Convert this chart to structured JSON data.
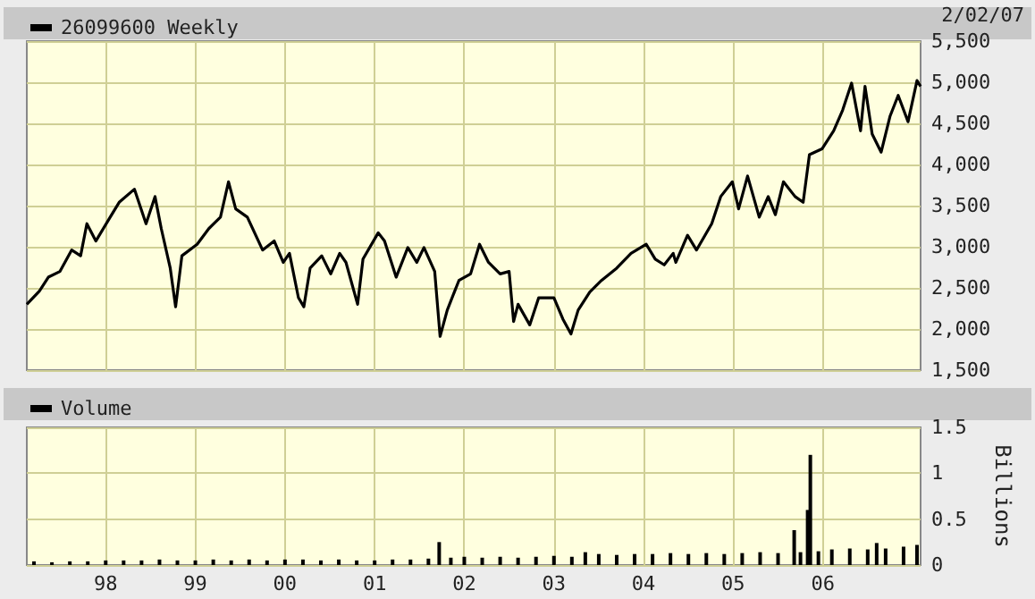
{
  "chart_data": [
    {
      "type": "line",
      "legend": "top left",
      "grid": true,
      "tick_labels": "y",
      "marker": "none",
      "line_style": "solid",
      "annotations": [
        "2/02/07"
      ],
      "xlim": [
        1997.12,
        2007.09
      ],
      "xticks": [
        1998,
        1999,
        2000,
        2001,
        2002,
        2003,
        2004,
        2005,
        2006
      ],
      "ylim": [
        1500,
        5500
      ],
      "yticks": [
        {
          "value": 1500,
          "label": "1,500"
        },
        {
          "value": 2000,
          "label": "2,000"
        },
        {
          "value": 2500,
          "label": "2,500"
        },
        {
          "value": 3000,
          "label": "3,000"
        },
        {
          "value": 3500,
          "label": "3,500"
        },
        {
          "value": 4000,
          "label": "4,000"
        },
        {
          "value": 4500,
          "label": "4,500"
        },
        {
          "value": 5000,
          "label": "5,000"
        },
        {
          "value": 5500,
          "label": "5,500"
        }
      ],
      "series": [
        {
          "name": "26099600 Weekly",
          "color": "#000000",
          "x": [
            1997.12,
            1997.26,
            1997.36,
            1997.49,
            1997.62,
            1997.72,
            1997.79,
            1997.89,
            1998.05,
            1998.15,
            1998.32,
            1998.45,
            1998.55,
            1998.62,
            1998.72,
            1998.78,
            1998.85,
            1999.02,
            1999.15,
            1999.28,
            1999.37,
            1999.45,
            1999.58,
            1999.75,
            1999.88,
            1999.98,
            2000.05,
            2000.15,
            2000.21,
            2000.28,
            2000.41,
            2000.51,
            2000.61,
            2000.68,
            2000.81,
            2000.87,
            2001.04,
            2001.11,
            2001.24,
            2001.37,
            2001.47,
            2001.55,
            2001.67,
            2001.73,
            2001.81,
            2001.94,
            2002.07,
            2002.17,
            2002.27,
            2002.4,
            2002.5,
            2002.55,
            2002.6,
            2002.73,
            2002.83,
            2003.0,
            2003.1,
            2003.19,
            2003.27,
            2003.4,
            2003.53,
            2003.7,
            2003.86,
            2004.03,
            2004.13,
            2004.23,
            2004.33,
            2004.36,
            2004.49,
            2004.59,
            2004.76,
            2004.86,
            2004.99,
            2005.06,
            2005.16,
            2005.29,
            2005.39,
            2005.47,
            2005.56,
            2005.69,
            2005.78,
            2005.85,
            2005.99,
            2006.12,
            2006.22,
            2006.32,
            2006.42,
            2006.47,
            2006.55,
            2006.65,
            2006.75,
            2006.84,
            2006.95,
            2007.05,
            2007.09
          ],
          "values": [
            2300,
            2460,
            2630,
            2700,
            2960,
            2890,
            3280,
            3070,
            3360,
            3540,
            3700,
            3280,
            3610,
            3220,
            2740,
            2270,
            2890,
            3030,
            3220,
            3360,
            3790,
            3460,
            3360,
            2960,
            3070,
            2810,
            2920,
            2380,
            2270,
            2740,
            2890,
            2670,
            2920,
            2810,
            2300,
            2850,
            3170,
            3070,
            2630,
            2990,
            2810,
            2990,
            2700,
            1910,
            2230,
            2590,
            2670,
            3030,
            2810,
            2670,
            2700,
            2090,
            2300,
            2050,
            2380,
            2380,
            2120,
            1940,
            2230,
            2450,
            2590,
            2740,
            2920,
            3030,
            2850,
            2780,
            2920,
            2810,
            3140,
            2960,
            3280,
            3610,
            3790,
            3460,
            3860,
            3360,
            3610,
            3390,
            3790,
            3610,
            3540,
            4120,
            4190,
            4410,
            4660,
            4990,
            4410,
            4950,
            4370,
            4150,
            4590,
            4840,
            4520,
            5020,
            4950
          ]
        }
      ]
    },
    {
      "type": "bar",
      "legend": "top left",
      "grid": true,
      "ylabel": "Billions",
      "xlim": [
        1997.12,
        2007.09
      ],
      "xticks": [
        {
          "value": 1998,
          "label": "98"
        },
        {
          "value": 1999,
          "label": "99"
        },
        {
          "value": 2000,
          "label": "00"
        },
        {
          "value": 2001,
          "label": "01"
        },
        {
          "value": 2002,
          "label": "02"
        },
        {
          "value": 2003,
          "label": "03"
        },
        {
          "value": 2004,
          "label": "04"
        },
        {
          "value": 2005,
          "label": "05"
        },
        {
          "value": 2006,
          "label": "06"
        }
      ],
      "ylim": [
        0,
        1.5
      ],
      "yticks": [
        0,
        0.5,
        1,
        1.5
      ],
      "series": [
        {
          "name": "Volume",
          "color": "#000000",
          "x": [
            1997.2,
            1997.4,
            1997.6,
            1997.8,
            1998.0,
            1998.2,
            1998.4,
            1998.6,
            1998.8,
            1999.0,
            1999.2,
            1999.4,
            1999.6,
            1999.8,
            2000.0,
            2000.2,
            2000.4,
            2000.6,
            2000.8,
            2001.0,
            2001.2,
            2001.4,
            2001.6,
            2001.72,
            2001.85,
            2002.0,
            2002.2,
            2002.4,
            2002.6,
            2002.8,
            2003.0,
            2003.2,
            2003.35,
            2003.5,
            2003.7,
            2003.9,
            2004.1,
            2004.3,
            2004.5,
            2004.7,
            2004.9,
            2005.1,
            2005.3,
            2005.5,
            2005.68,
            2005.75,
            2005.83,
            2005.86,
            2005.95,
            2006.1,
            2006.3,
            2006.5,
            2006.6,
            2006.7,
            2006.9,
            2007.05
          ],
          "values": [
            0.04,
            0.03,
            0.04,
            0.04,
            0.05,
            0.05,
            0.05,
            0.06,
            0.05,
            0.05,
            0.06,
            0.05,
            0.06,
            0.05,
            0.06,
            0.06,
            0.05,
            0.06,
            0.05,
            0.05,
            0.06,
            0.06,
            0.07,
            0.25,
            0.08,
            0.09,
            0.08,
            0.09,
            0.08,
            0.09,
            0.1,
            0.09,
            0.14,
            0.12,
            0.11,
            0.12,
            0.12,
            0.13,
            0.12,
            0.13,
            0.12,
            0.13,
            0.14,
            0.13,
            0.38,
            0.14,
            0.6,
            1.2,
            0.15,
            0.17,
            0.18,
            0.17,
            0.24,
            0.18,
            0.2,
            0.22
          ]
        }
      ]
    }
  ]
}
